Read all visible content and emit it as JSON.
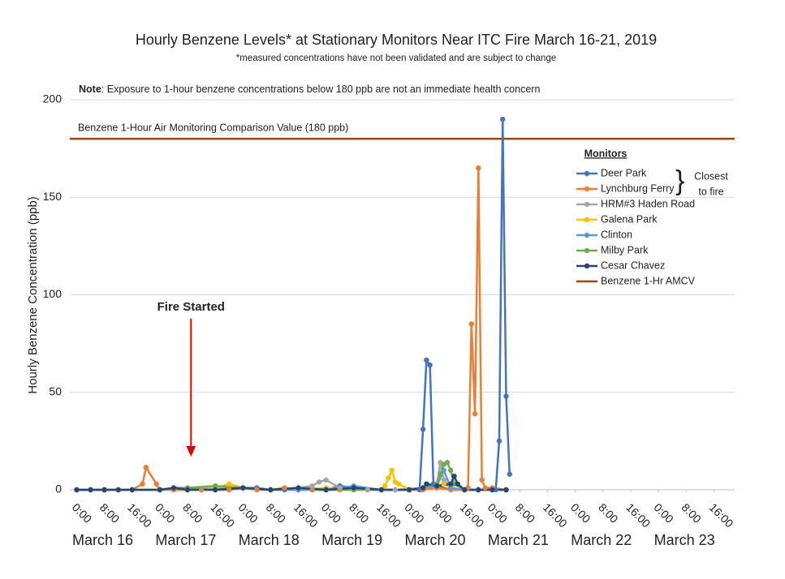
{
  "chart_data": {
    "type": "line",
    "title": "Hourly Benzene Levels* at Stationary Monitors Near ITC Fire March 16-21, 2019",
    "subtitle": "*measured concentrations have not been validated and are subject to change",
    "note_label": "Note",
    "note_text": ": Exposure to 1-hour benzene concentrations below 180 ppb are not an immediate health concern",
    "y_label": "Hourly Benzene Concentration (ppb)",
    "legend_title": "Monitors",
    "legend_bracket_note": [
      "Closest",
      "to fire"
    ],
    "annotation": {
      "text": "Fire Started",
      "x": 33
    },
    "reference_line": {
      "name": "Benzene 1-Hr AMCV",
      "value": 180,
      "color": "#a0450f",
      "label": "Benzene 1-Hour Air Monitoring Comparison Value (180 ppb)",
      "label_color": "#c00000"
    },
    "xlim": [
      -2,
      190
    ],
    "ylim": [
      0,
      200
    ],
    "yticks": [
      0,
      50,
      100,
      150,
      200
    ],
    "grid": true,
    "xticks": [
      {
        "value": 0,
        "label": "0:00"
      },
      {
        "value": 8,
        "label": "8:00"
      },
      {
        "value": 16,
        "label": "16:00"
      },
      {
        "value": 24,
        "label": "0:00"
      },
      {
        "value": 32,
        "label": "8:00"
      },
      {
        "value": 40,
        "label": "16:00"
      },
      {
        "value": 48,
        "label": "0:00"
      },
      {
        "value": 56,
        "label": "8:00"
      },
      {
        "value": 64,
        "label": "16:00"
      },
      {
        "value": 72,
        "label": "0:00"
      },
      {
        "value": 80,
        "label": "8:00"
      },
      {
        "value": 88,
        "label": "16:00"
      },
      {
        "value": 96,
        "label": "0:00"
      },
      {
        "value": 104,
        "label": "8:00"
      },
      {
        "value": 112,
        "label": "16:00"
      },
      {
        "value": 120,
        "label": "0:00"
      },
      {
        "value": 128,
        "label": "8:00"
      },
      {
        "value": 136,
        "label": "16:00"
      },
      {
        "value": 144,
        "label": "0:00"
      },
      {
        "value": 152,
        "label": "8:00"
      },
      {
        "value": 160,
        "label": "16:00"
      },
      {
        "value": 168,
        "label": "0:00"
      },
      {
        "value": 176,
        "label": "8:00"
      },
      {
        "value": 184,
        "label": "16:00"
      }
    ],
    "days": [
      {
        "value": 0,
        "label": "March 16"
      },
      {
        "value": 24,
        "label": "March 17"
      },
      {
        "value": 48,
        "label": "March 18"
      },
      {
        "value": 72,
        "label": "March 19"
      },
      {
        "value": 96,
        "label": "March 20"
      },
      {
        "value": 120,
        "label": "March 21"
      },
      {
        "value": 144,
        "label": "March 22"
      },
      {
        "value": 168,
        "label": "March 23"
      }
    ],
    "series": [
      {
        "name": "Deer Park",
        "color": "#4472c4",
        "x": [
          0,
          4,
          8,
          12,
          16,
          24,
          28,
          32,
          36,
          40,
          44,
          48,
          52,
          56,
          60,
          64,
          68,
          72,
          76,
          80,
          84,
          88,
          92,
          96,
          99,
          100,
          101,
          102,
          103,
          104,
          108,
          112,
          116,
          120,
          121,
          122,
          123,
          124,
          125
        ],
        "values": [
          0,
          0,
          0,
          0,
          0,
          0,
          1,
          1,
          0,
          0,
          0,
          1,
          1,
          0,
          0,
          0,
          0,
          0,
          2,
          1,
          0,
          0,
          0,
          0,
          0,
          31,
          66.5,
          64,
          3,
          2,
          0,
          0,
          0,
          0,
          0,
          25,
          190,
          48,
          8
        ]
      },
      {
        "name": "Lynchburg Ferry",
        "color": "#ed7d31",
        "x": [
          0,
          4,
          8,
          12,
          16,
          19,
          20,
          23,
          24,
          28,
          32,
          36,
          40,
          44,
          48,
          52,
          56,
          60,
          64,
          68,
          72,
          76,
          80,
          84,
          88,
          92,
          96,
          100,
          104,
          108,
          112,
          113,
          114,
          115,
          116,
          117,
          118,
          120,
          124
        ],
        "values": [
          0,
          0,
          0,
          0,
          0,
          3,
          11.5,
          3,
          0,
          0,
          0,
          0,
          1,
          0,
          1,
          0,
          0,
          1,
          0,
          0,
          0,
          0,
          0,
          0,
          0,
          0,
          0,
          0,
          1,
          0,
          0,
          1,
          85,
          39,
          165,
          5,
          1,
          1,
          0
        ]
      },
      {
        "name": "HRM#3 Haden Road",
        "color": "#a5a5a5",
        "x": [
          0,
          8,
          16,
          24,
          32,
          40,
          48,
          56,
          64,
          68,
          70,
          72,
          76,
          84,
          92,
          100,
          104,
          105,
          106,
          108,
          112,
          116,
          120,
          124
        ],
        "values": [
          0,
          0,
          0,
          0,
          1,
          1,
          1,
          0,
          1,
          2,
          4,
          5,
          1,
          0,
          0,
          1,
          3,
          14,
          5,
          1,
          0,
          0,
          0,
          0
        ]
      },
      {
        "name": "Galena Park",
        "color": "#ffc000",
        "x": [
          0,
          8,
          16,
          24,
          32,
          40,
          44,
          48,
          56,
          64,
          72,
          80,
          88,
          89,
          90,
          91,
          92,
          93,
          96,
          100,
          104,
          106,
          108,
          112,
          116,
          120,
          124
        ],
        "values": [
          0,
          0,
          0,
          0,
          1,
          1,
          3,
          1,
          0,
          0,
          1,
          0,
          0,
          2,
          6,
          10,
          4,
          3,
          0,
          1,
          2,
          3,
          1,
          0,
          0,
          0,
          0
        ]
      },
      {
        "name": "Clinton",
        "color": "#5b9bd5",
        "x": [
          0,
          4,
          8,
          16,
          24,
          32,
          40,
          48,
          56,
          64,
          72,
          80,
          88,
          96,
          104,
          106,
          108,
          112,
          116,
          120,
          124
        ],
        "values": [
          0,
          0,
          0,
          0,
          0,
          1,
          0,
          1,
          0,
          0,
          0,
          2,
          0,
          0,
          2,
          10,
          1,
          0,
          0,
          0,
          0
        ]
      },
      {
        "name": "Milby Park",
        "color": "#70ad47",
        "x": [
          0,
          8,
          16,
          24,
          32,
          40,
          48,
          56,
          64,
          72,
          80,
          88,
          96,
          100,
          104,
          105,
          106,
          107,
          108,
          109,
          112,
          116,
          120,
          124
        ],
        "values": [
          0,
          0,
          0,
          0,
          1,
          2,
          1,
          0,
          1,
          0,
          0,
          0,
          0,
          1,
          3,
          8,
          13,
          14,
          10,
          3,
          0,
          0,
          0,
          0
        ]
      },
      {
        "name": "Cesar Chavez",
        "color": "#264478",
        "x": [
          0,
          4,
          8,
          12,
          16,
          24,
          28,
          32,
          40,
          48,
          56,
          64,
          72,
          80,
          88,
          96,
          100,
          101,
          104,
          108,
          109,
          110,
          112,
          116,
          120,
          124
        ],
        "values": [
          0,
          0,
          0,
          0,
          0,
          0,
          1,
          0,
          0,
          1,
          0,
          1,
          0,
          1,
          0,
          0,
          1,
          3,
          2,
          3,
          7,
          3,
          0,
          0,
          0,
          0
        ]
      }
    ]
  }
}
